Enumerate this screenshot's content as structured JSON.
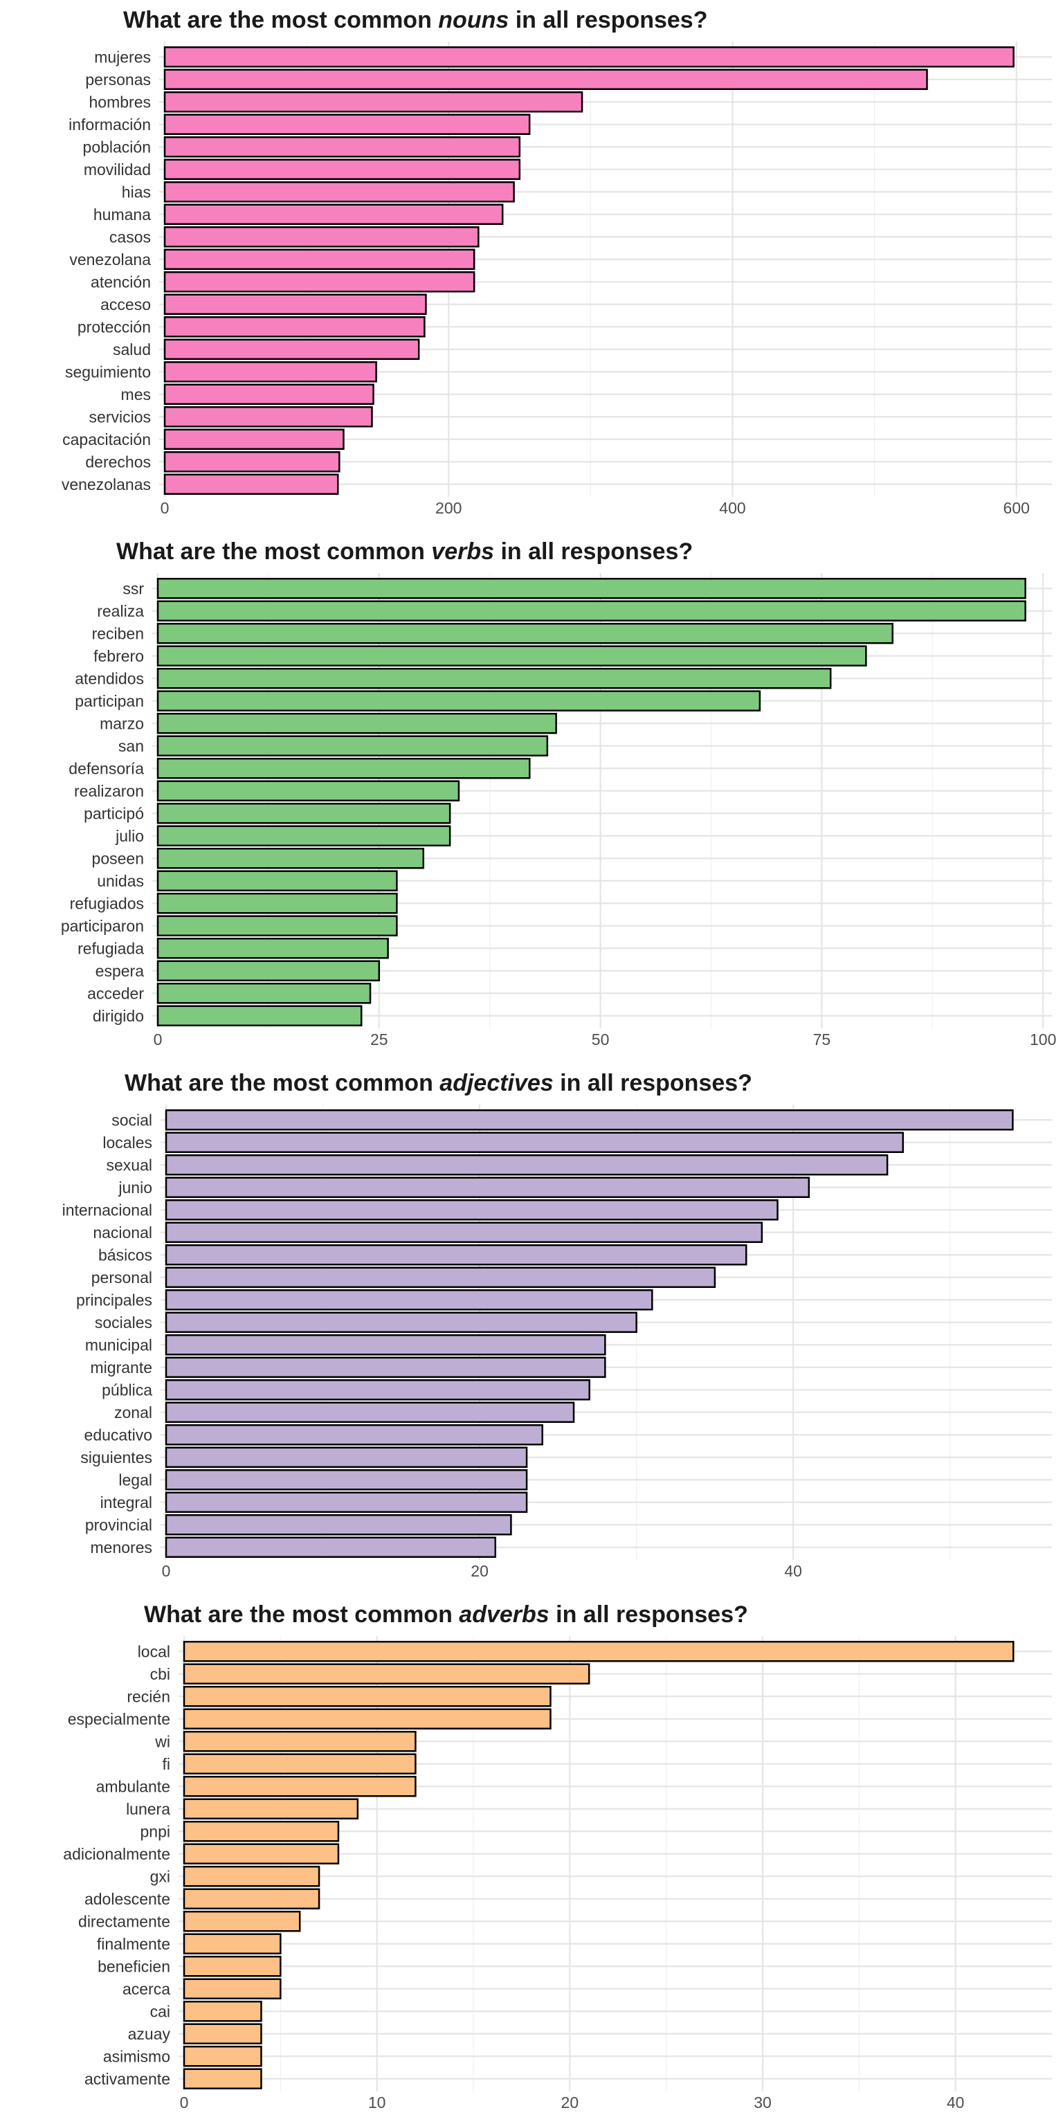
{
  "chart_data": [
    {
      "type": "bar",
      "orientation": "horizontal",
      "title_parts": [
        "What are the most common ",
        "nouns",
        " in all responses?"
      ],
      "categories": [
        "mujeres",
        "personas",
        "hombres",
        "información",
        "población",
        "movilidad",
        "hias",
        "humana",
        "casos",
        "venezolana",
        "atención",
        "acceso",
        "protección",
        "salud",
        "seguimiento",
        "mes",
        "servicios",
        "capacitación",
        "derechos",
        "venezolanas"
      ],
      "values": [
        598,
        537,
        294,
        257,
        250,
        250,
        246,
        238,
        221,
        218,
        218,
        184,
        183,
        179,
        149,
        147,
        146,
        126,
        123,
        122
      ],
      "xlim": [
        0,
        625
      ],
      "xticks": [
        0,
        200,
        400,
        600
      ],
      "xminor": [
        100,
        300,
        500
      ],
      "color": "#F781BF",
      "xlabel": "",
      "ylabel": "",
      "grid": true
    },
    {
      "type": "bar",
      "orientation": "horizontal",
      "title_parts": [
        "What are the most common ",
        "verbs",
        " in all responses?"
      ],
      "categories": [
        "ssr",
        "realiza",
        "reciben",
        "febrero",
        "atendidos",
        "participan",
        "marzo",
        "san",
        "defensoría",
        "realizaron",
        "participó",
        "julio",
        "poseen",
        "unidas",
        "refugiados",
        "participaron",
        "refugiada",
        "espera",
        "acceder",
        "dirigido"
      ],
      "values": [
        98,
        98,
        83,
        80,
        76,
        68,
        45,
        44,
        42,
        34,
        33,
        33,
        30,
        27,
        27,
        27,
        26,
        25,
        24,
        23
      ],
      "xlim": [
        0,
        101
      ],
      "xticks": [
        0,
        25,
        50,
        75,
        100
      ],
      "xminor": [
        12.5,
        37.5,
        62.5,
        87.5
      ],
      "color": "#7FC97F",
      "xlabel": "",
      "ylabel": "",
      "grid": true
    },
    {
      "type": "bar",
      "orientation": "horizontal",
      "title_parts": [
        "What are the most common ",
        "adjectives",
        " in all responses?"
      ],
      "categories": [
        "social",
        "locales",
        "sexual",
        "junio",
        "internacional",
        "nacional",
        "básicos",
        "personal",
        "principales",
        "sociales",
        "municipal",
        "migrante",
        "pública",
        "zonal",
        "educativo",
        "siguientes",
        "legal",
        "integral",
        "provincial",
        "menores"
      ],
      "values": [
        54,
        47,
        46,
        41,
        39,
        38,
        37,
        35,
        31,
        30,
        28,
        28,
        27,
        26,
        24,
        23,
        23,
        23,
        22,
        21
      ],
      "xlim": [
        0,
        56.5
      ],
      "xticks": [
        0,
        20,
        40
      ],
      "xminor": [
        10,
        30,
        50
      ],
      "color": "#BEAED4",
      "xlabel": "",
      "ylabel": "",
      "grid": true
    },
    {
      "type": "bar",
      "orientation": "horizontal",
      "title_parts": [
        "What are the most common ",
        "adverbs",
        " in all responses?"
      ],
      "categories": [
        "local",
        "cbi",
        "recién",
        "especialmente",
        "wi",
        "fi",
        "ambulante",
        "lunera",
        "pnpi",
        "adicionalmente",
        "gxi",
        "adolescente",
        "directamente",
        "finalmente",
        "beneficien",
        "acerca",
        "cai",
        "azuay",
        "asimismo",
        "activamente"
      ],
      "values": [
        43,
        21,
        19,
        19,
        12,
        12,
        12,
        9,
        8,
        8,
        7,
        7,
        6,
        5,
        5,
        5,
        4,
        4,
        4,
        4
      ],
      "xlim": [
        0,
        45
      ],
      "xticks": [
        0,
        10,
        20,
        30,
        40
      ],
      "xminor": [
        5,
        15,
        25,
        35
      ],
      "color": "#FDC086",
      "xlabel": "",
      "ylabel": "",
      "grid": true
    }
  ]
}
